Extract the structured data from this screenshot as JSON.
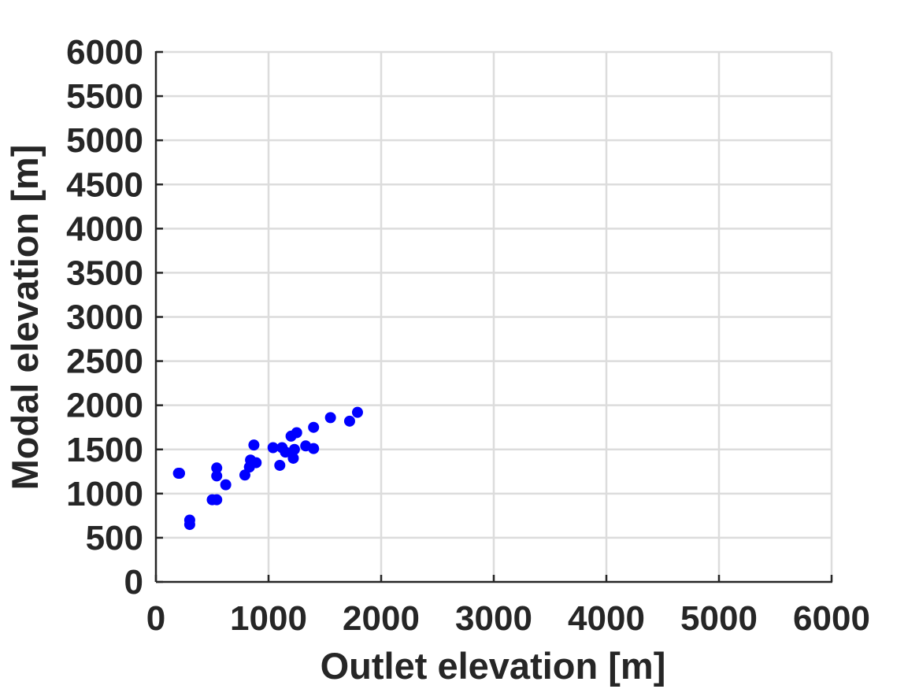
{
  "chart_data": {
    "type": "scatter",
    "title": "",
    "xlabel": "Outlet elevation [m]",
    "ylabel": "Modal elevation [m]",
    "xlim": [
      0,
      6000
    ],
    "ylim": [
      0,
      6000
    ],
    "xticks": [
      0,
      1000,
      2000,
      3000,
      4000,
      5000,
      6000
    ],
    "yticks": [
      0,
      500,
      1000,
      1500,
      2000,
      2500,
      3000,
      3500,
      4000,
      4500,
      5000,
      5500,
      6000
    ],
    "xtick_labels": [
      "0",
      "1000",
      "2000",
      "3000",
      "4000",
      "5000",
      "6000"
    ],
    "ytick_labels": [
      "0",
      "500",
      "1000",
      "1500",
      "2000",
      "2500",
      "3000",
      "3500",
      "4000",
      "4500",
      "5000",
      "5500",
      "6000"
    ],
    "grid": true,
    "legend": "none",
    "marker_color": "#0000ff",
    "axis_color": "#262626",
    "grid_color": "#dcdcdc",
    "series": [
      {
        "x": [
          200,
          210,
          300,
          300,
          500,
          540,
          540,
          540,
          620,
          790,
          830,
          840,
          870,
          890,
          1040,
          1100,
          1120,
          1150,
          1200,
          1220,
          1230,
          1250,
          1330,
          1400,
          1400,
          1550,
          1720,
          1790
        ],
        "y": [
          1230,
          1230,
          650,
          700,
          930,
          930,
          1200,
          1290,
          1100,
          1210,
          1300,
          1380,
          1550,
          1350,
          1520,
          1320,
          1520,
          1470,
          1650,
          1400,
          1500,
          1690,
          1540,
          1510,
          1750,
          1860,
          1820,
          1920
        ]
      }
    ]
  }
}
